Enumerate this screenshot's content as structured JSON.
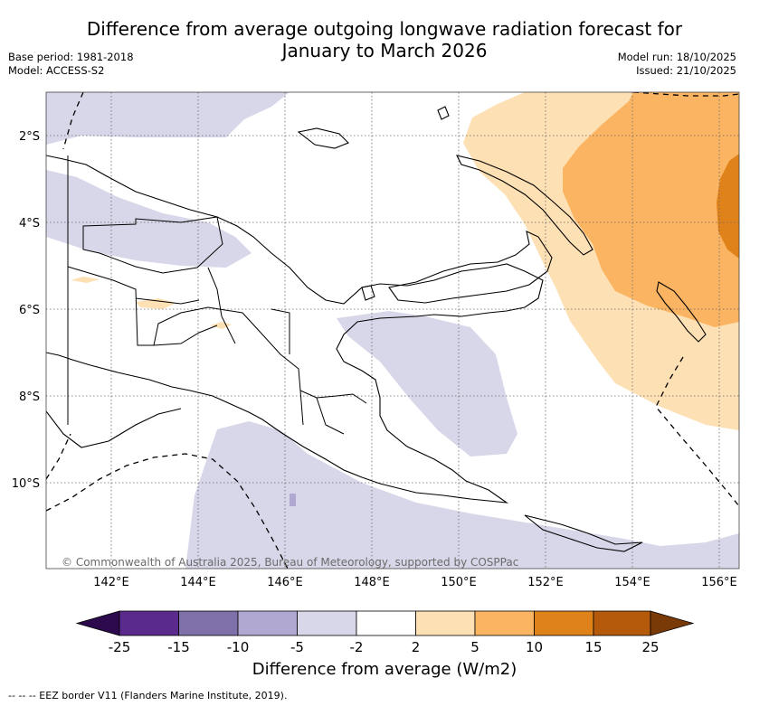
{
  "header": {
    "title_line1": "Difference from average outgoing longwave radiation forecast for",
    "title_line2": "January to March 2026",
    "base_period": "Base period: 1981-2018",
    "model": "Model: ACCESS-S2",
    "model_run": "Model run: 18/10/2025",
    "issued": "Issued: 21/10/2025"
  },
  "map": {
    "lat_labels": [
      "2°S",
      "4°S",
      "6°S",
      "8°S",
      "10°S"
    ],
    "lon_labels": [
      "142°E",
      "144°E",
      "146°E",
      "148°E",
      "150°E",
      "152°E",
      "154°E",
      "156°E"
    ],
    "copyright": "© Commonwealth of Australia 2025, Bureau of Meteorology, supported by COSPPac"
  },
  "colorbar": {
    "colors": [
      "#2d0a4e",
      "#5a2a8c",
      "#8070aa",
      "#b0a8d0",
      "#d7d7e9",
      "#ffffff",
      "#fde0b3",
      "#fbb462",
      "#e0821a",
      "#b45a0a",
      "#7a3a08"
    ],
    "tick_labels": [
      "-25",
      "-15",
      "-10",
      "-5",
      "-2",
      "2",
      "5",
      "10",
      "15",
      "25"
    ],
    "title": "Difference from average (W/m2)"
  },
  "footnote": "--  --  -- EEZ border V11 (Flanders Marine Institute, 2019)."
}
